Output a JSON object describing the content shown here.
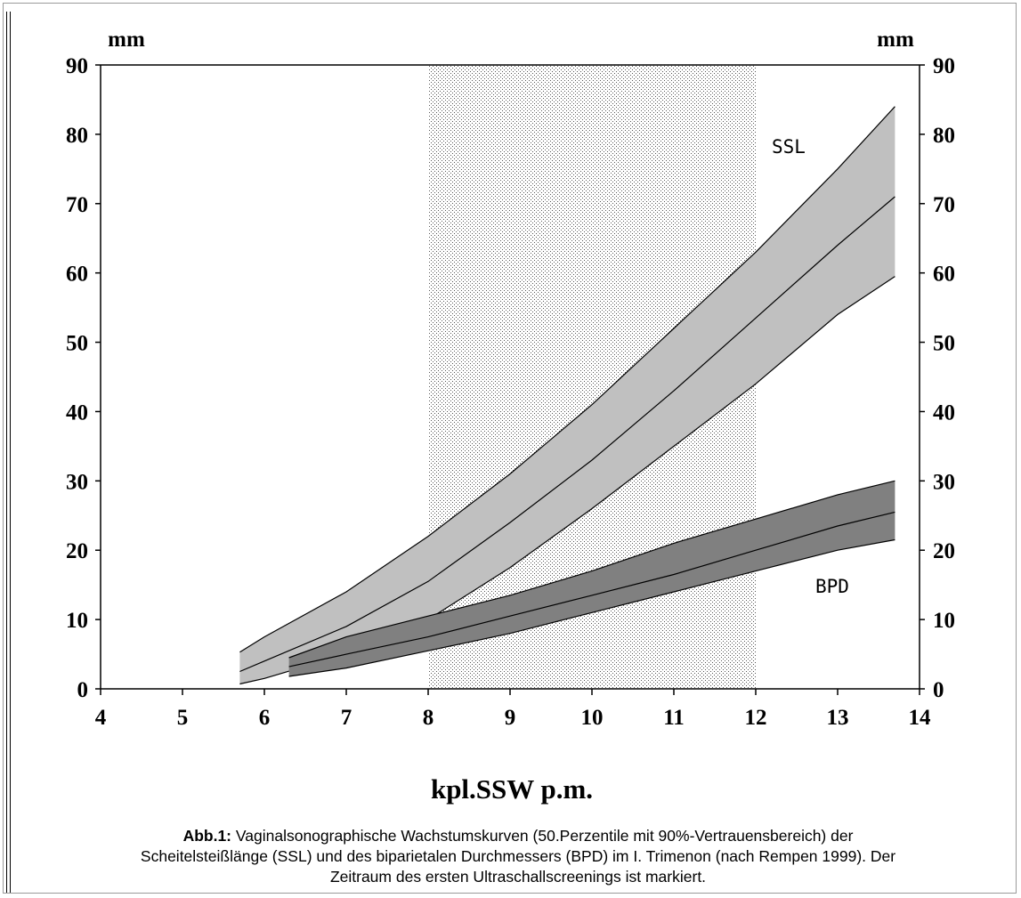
{
  "chart_data": {
    "type": "area",
    "x_axis": {
      "label": "kpl.SSW p.m.",
      "range": [
        4,
        14
      ],
      "ticks": [
        "4",
        "5",
        "6",
        "7",
        "8",
        "9",
        "10",
        "11",
        "12",
        "13",
        "14"
      ]
    },
    "y_axis_left": {
      "unit": "mm",
      "range": [
        0,
        90
      ],
      "ticks": [
        "0",
        "10",
        "20",
        "30",
        "40",
        "50",
        "60",
        "70",
        "80",
        "90"
      ]
    },
    "y_axis_right": {
      "unit": "mm",
      "range": [
        0,
        90
      ],
      "ticks": [
        "0",
        "10",
        "20",
        "30",
        "40",
        "50",
        "60",
        "70",
        "80",
        "90"
      ]
    },
    "highlight_region": {
      "x_from": 8,
      "x_to": 12,
      "style": "dotted"
    },
    "series": [
      {
        "name": "SSL",
        "fill_color": "#c0c0c0",
        "x": [
          5.7,
          6,
          7,
          8,
          9,
          10,
          11,
          12,
          13,
          13.7
        ],
        "upper": [
          5.3,
          7.5,
          14,
          22,
          31,
          41,
          52,
          63,
          75,
          84
        ],
        "median": [
          2.5,
          4,
          9,
          15.5,
          24,
          33,
          43,
          53.5,
          64,
          71
        ],
        "lower": [
          0.7,
          1.5,
          5,
          10,
          17.5,
          26,
          35,
          44,
          54,
          59.5
        ]
      },
      {
        "name": "BPD",
        "fill_color": "#808080",
        "x": [
          6.3,
          7,
          8,
          9,
          10,
          11,
          12,
          13,
          13.7
        ],
        "upper": [
          4.5,
          7.5,
          10.5,
          13.5,
          17,
          21,
          24.5,
          28,
          30
        ],
        "median": [
          3.2,
          5,
          7.5,
          10.5,
          13.5,
          16.5,
          20,
          23.5,
          25.5
        ],
        "lower": [
          1.8,
          3,
          5.5,
          8,
          11,
          14,
          17,
          20,
          21.5
        ]
      }
    ]
  },
  "caption": {
    "label": "Abb.1:",
    "text": " Vaginalsonographische Wachstumskurven (50.Perzentile mit 90%-Vertrauensbereich) der",
    "line2": "Scheitelsteißlänge (SSL) und des biparietalen Durchmessers (BPD) im I. Trimenon (nach Rempen 1999). Der",
    "line3": "Zeitraum des ersten Ultraschallscreenings ist markiert."
  }
}
